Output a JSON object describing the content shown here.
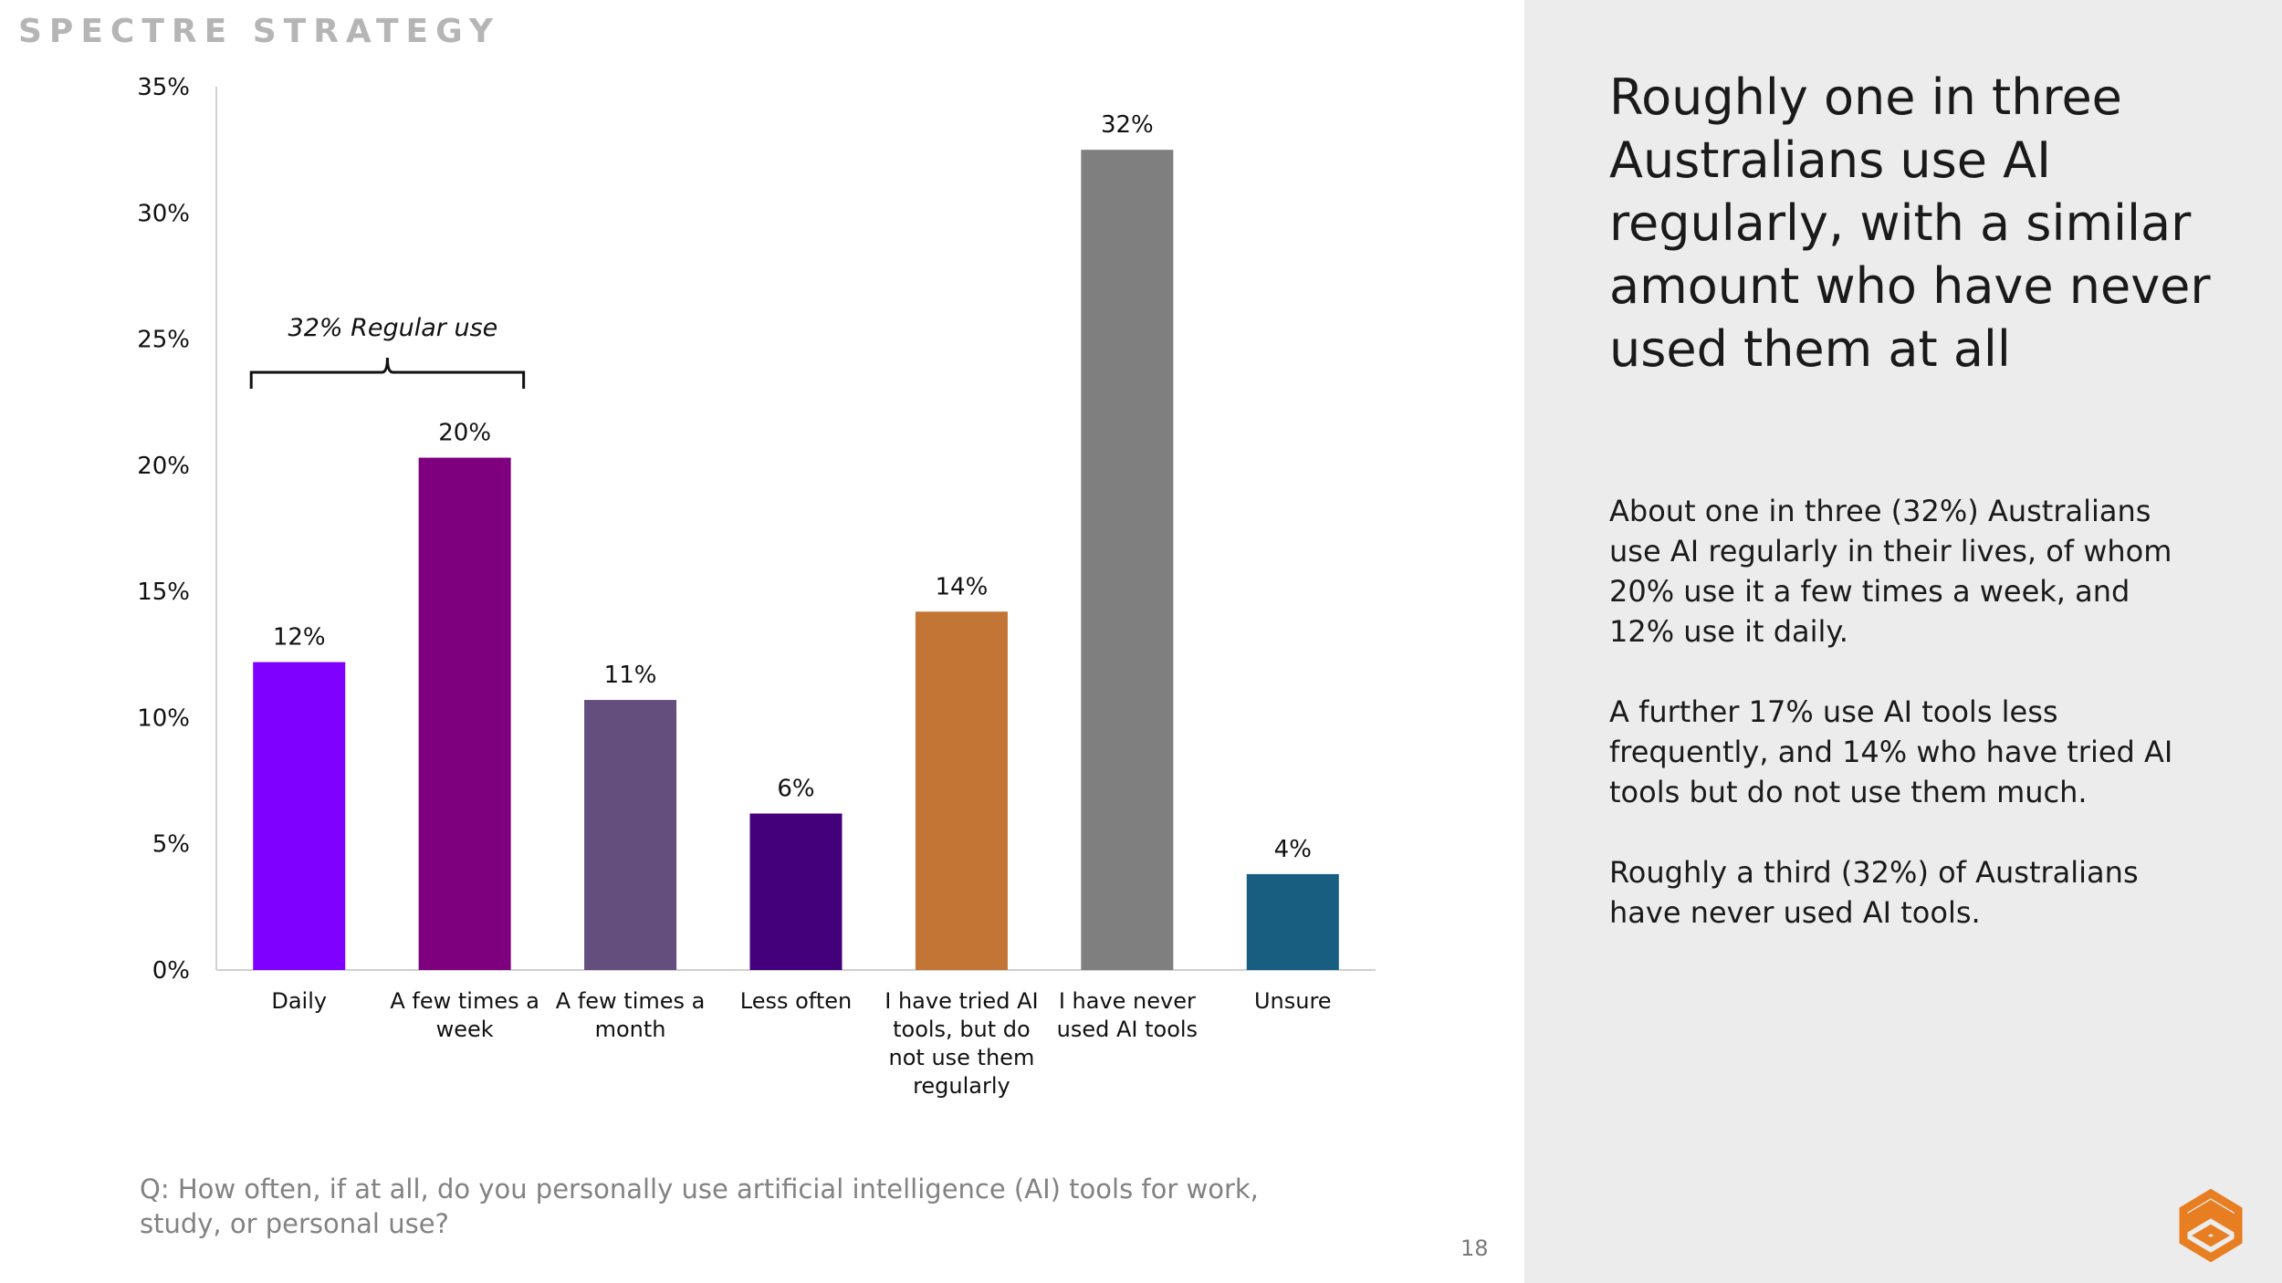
{
  "brand": "SPECTRE STRATEGY",
  "chart_data": {
    "type": "bar",
    "categories": [
      [
        "Daily"
      ],
      [
        "A few times a",
        "week"
      ],
      [
        "A few times a",
        "month"
      ],
      [
        "Less often"
      ],
      [
        "I have tried AI",
        "tools, but do",
        "not use them",
        "regularly"
      ],
      [
        "I have never",
        "used AI tools"
      ],
      [
        "Unsure"
      ]
    ],
    "values": [
      12.2,
      20.3,
      10.7,
      6.2,
      14.2,
      32.5,
      3.8
    ],
    "value_labels": [
      "12%",
      "20%",
      "11%",
      "6%",
      "14%",
      "32%",
      "4%"
    ],
    "colors": [
      "#8000ff",
      "#7e007e",
      "#634e7e",
      "#44007a",
      "#c27535",
      "#7f7f7f",
      "#175e80"
    ],
    "ylim": [
      0,
      35
    ],
    "yticks": [
      0,
      5,
      10,
      15,
      20,
      25,
      30,
      35
    ],
    "ytick_labels": [
      "0%",
      "5%",
      "10%",
      "15%",
      "20%",
      "25%",
      "30%",
      "35%"
    ],
    "annotation": {
      "label": "32% Regular use",
      "span_categories": [
        0,
        1
      ]
    },
    "xlabel": "",
    "ylabel": ""
  },
  "question": "Q: How often, if at all, do you personally use artificial intelligence (AI) tools for work, study, or personal use?",
  "page_number": "18",
  "sidebar": {
    "headline": "Roughly one in three Australians use AI regularly, with a similar amount who have never used them at all",
    "paragraphs": [
      "About one in three (32%) Australians use AI regularly in their lives, of whom 20% use it a few times a week, and 12% use it daily.",
      "A further 17% use AI tools less frequently, and 14% who have tried AI tools but do not use them much.",
      "Roughly a third (32%) of Australians have never used AI tools."
    ]
  },
  "logo_icon": "spectre-logo-icon",
  "logo_color": "#e87e22"
}
